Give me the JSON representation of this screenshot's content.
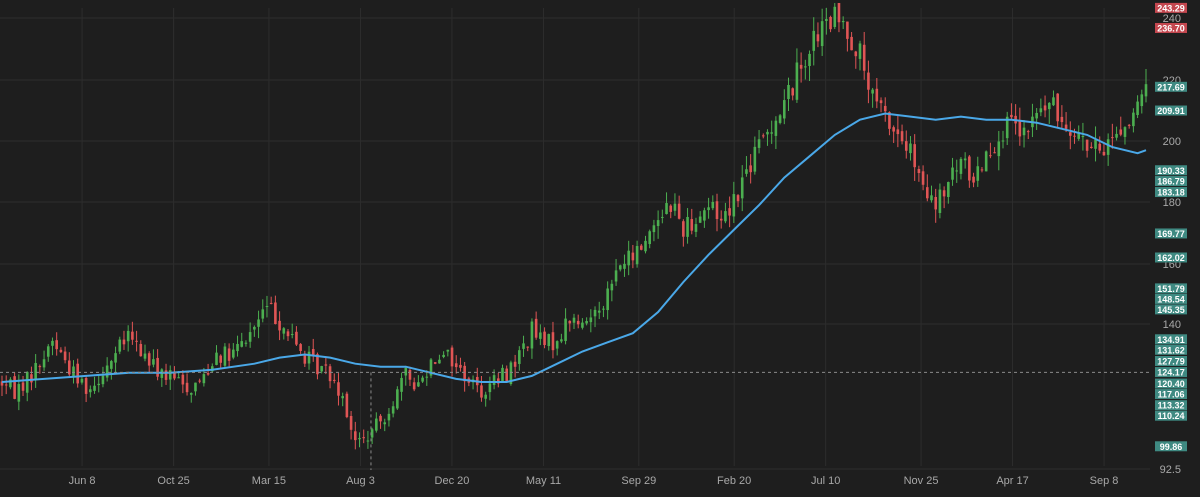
{
  "chart_data": {
    "type": "candlestick",
    "title": "",
    "colors": {
      "up": "#4caf50",
      "down": "#e05555",
      "moving_average": "#4aa8e8",
      "badge_green": "#3f8a82",
      "badge_red": "#c4474f"
    },
    "ylim": [
      92.5,
      245
    ],
    "y_ticks": [
      92.5,
      140,
      160,
      180,
      200,
      220,
      240
    ],
    "x_tick_labels": [
      "Jun 8",
      "Oct 25",
      "Mar 15",
      "Aug 3",
      "Dec 20",
      "May 11",
      "Sep 29",
      "Feb 20",
      "Jul 10",
      "Nov 25",
      "Apr 17",
      "Sep 8"
    ],
    "grid": true,
    "crosshair": {
      "price": 124.17,
      "date_label": "Aug 3"
    },
    "price_path": [
      [
        0,
        121
      ],
      [
        3,
        118
      ],
      [
        6,
        122
      ],
      [
        9,
        127
      ],
      [
        12,
        135
      ],
      [
        15,
        128
      ],
      [
        18,
        122
      ],
      [
        21,
        119
      ],
      [
        24,
        125
      ],
      [
        27,
        130
      ],
      [
        30,
        136
      ],
      [
        33,
        131
      ],
      [
        36,
        126
      ],
      [
        39,
        123
      ],
      [
        42,
        121
      ],
      [
        45,
        119
      ],
      [
        48,
        123
      ],
      [
        51,
        131
      ],
      [
        54,
        129
      ],
      [
        57,
        133
      ],
      [
        60,
        139
      ],
      [
        63,
        146
      ],
      [
        66,
        141
      ],
      [
        69,
        135
      ],
      [
        72,
        129
      ],
      [
        75,
        126
      ],
      [
        78,
        124
      ],
      [
        81,
        117
      ],
      [
        84,
        101
      ],
      [
        87,
        103
      ],
      [
        90,
        108
      ],
      [
        93,
        115
      ],
      [
        96,
        123
      ],
      [
        99,
        120
      ],
      [
        102,
        128
      ],
      [
        105,
        132
      ],
      [
        108,
        126
      ],
      [
        111,
        122
      ],
      [
        114,
        118
      ],
      [
        117,
        121
      ],
      [
        120,
        124
      ],
      [
        123,
        130
      ],
      [
        126,
        138
      ],
      [
        129,
        133
      ],
      [
        132,
        135
      ],
      [
        135,
        142
      ],
      [
        138,
        139
      ],
      [
        141,
        145
      ],
      [
        144,
        150
      ],
      [
        147,
        160
      ],
      [
        150,
        162
      ],
      [
        153,
        168
      ],
      [
        156,
        176
      ],
      [
        159,
        180
      ],
      [
        162,
        172
      ],
      [
        165,
        175
      ],
      [
        168,
        179
      ],
      [
        171,
        175
      ],
      [
        174,
        181
      ],
      [
        177,
        190
      ],
      [
        180,
        198
      ],
      [
        183,
        206
      ],
      [
        186,
        212
      ],
      [
        189,
        222
      ],
      [
        192,
        231
      ],
      [
        195,
        236
      ],
      [
        198,
        240
      ],
      [
        201,
        236
      ],
      [
        204,
        228
      ],
      [
        207,
        213
      ],
      [
        210,
        208
      ],
      [
        213,
        202
      ],
      [
        216,
        196
      ],
      [
        219,
        183
      ],
      [
        222,
        178
      ],
      [
        225,
        186
      ],
      [
        228,
        193
      ],
      [
        231,
        188
      ],
      [
        234,
        196
      ],
      [
        237,
        202
      ],
      [
        240,
        205
      ],
      [
        243,
        201
      ],
      [
        246,
        209
      ],
      [
        249,
        212
      ],
      [
        252,
        207
      ],
      [
        255,
        205
      ],
      [
        258,
        198
      ],
      [
        261,
        196
      ],
      [
        264,
        202
      ],
      [
        267,
        205
      ],
      [
        270,
        210
      ],
      [
        272,
        216
      ]
    ],
    "series": [
      {
        "name": "",
        "kind": "moving_average",
        "points": [
          [
            0,
            121
          ],
          [
            10,
            122
          ],
          [
            20,
            123
          ],
          [
            30,
            124
          ],
          [
            40,
            124
          ],
          [
            50,
            125
          ],
          [
            60,
            127
          ],
          [
            66,
            129
          ],
          [
            72,
            130
          ],
          [
            78,
            129
          ],
          [
            84,
            127
          ],
          [
            90,
            126
          ],
          [
            96,
            126
          ],
          [
            102,
            124
          ],
          [
            108,
            122
          ],
          [
            114,
            121
          ],
          [
            120,
            121
          ],
          [
            126,
            123
          ],
          [
            132,
            127
          ],
          [
            138,
            131
          ],
          [
            144,
            134
          ],
          [
            150,
            137
          ],
          [
            156,
            144
          ],
          [
            162,
            154
          ],
          [
            168,
            163
          ],
          [
            174,
            171
          ],
          [
            180,
            179
          ],
          [
            186,
            188
          ],
          [
            192,
            195
          ],
          [
            198,
            202
          ],
          [
            204,
            207
          ],
          [
            210,
            209
          ],
          [
            216,
            208
          ],
          [
            222,
            207
          ],
          [
            228,
            208
          ],
          [
            234,
            207
          ],
          [
            240,
            207
          ],
          [
            246,
            206
          ],
          [
            252,
            204
          ],
          [
            258,
            202
          ],
          [
            264,
            198
          ],
          [
            270,
            196
          ],
          [
            272,
            197
          ]
        ]
      }
    ],
    "price_labels": [
      {
        "value": 243.29,
        "text": "243.29",
        "color": "red"
      },
      {
        "value": 236.7,
        "text": "236.70",
        "color": "red"
      },
      {
        "value": 217.69,
        "text": "217.69",
        "color": "green"
      },
      {
        "value": 209.91,
        "text": "209.91",
        "color": "green"
      },
      {
        "value": 190.33,
        "text": "190.33",
        "color": "green"
      },
      {
        "value": 186.79,
        "text": "186.79",
        "color": "green"
      },
      {
        "value": 183.18,
        "text": "183.18",
        "color": "green"
      },
      {
        "value": 169.77,
        "text": "169.77",
        "color": "green"
      },
      {
        "value": 162.02,
        "text": "162.02",
        "color": "green"
      },
      {
        "value": 151.79,
        "text": "151.79",
        "color": "green"
      },
      {
        "value": 148.54,
        "text": "148.54",
        "color": "green"
      },
      {
        "value": 145.35,
        "text": "145.35",
        "color": "green"
      },
      {
        "value": 134.91,
        "text": "134.91",
        "color": "green"
      },
      {
        "value": 131.62,
        "text": "131.62",
        "color": "green"
      },
      {
        "value": 127.79,
        "text": "127.79",
        "color": "green"
      },
      {
        "value": 124.17,
        "text": "124.17",
        "color": "green"
      },
      {
        "value": 120.4,
        "text": "120.40",
        "color": "green"
      },
      {
        "value": 117.06,
        "text": "117.06",
        "color": "green"
      },
      {
        "value": 113.32,
        "text": "113.32",
        "color": "green"
      },
      {
        "value": 110.24,
        "text": "110.24",
        "color": "green"
      },
      {
        "value": 99.86,
        "text": "99.86",
        "color": "green"
      }
    ]
  }
}
